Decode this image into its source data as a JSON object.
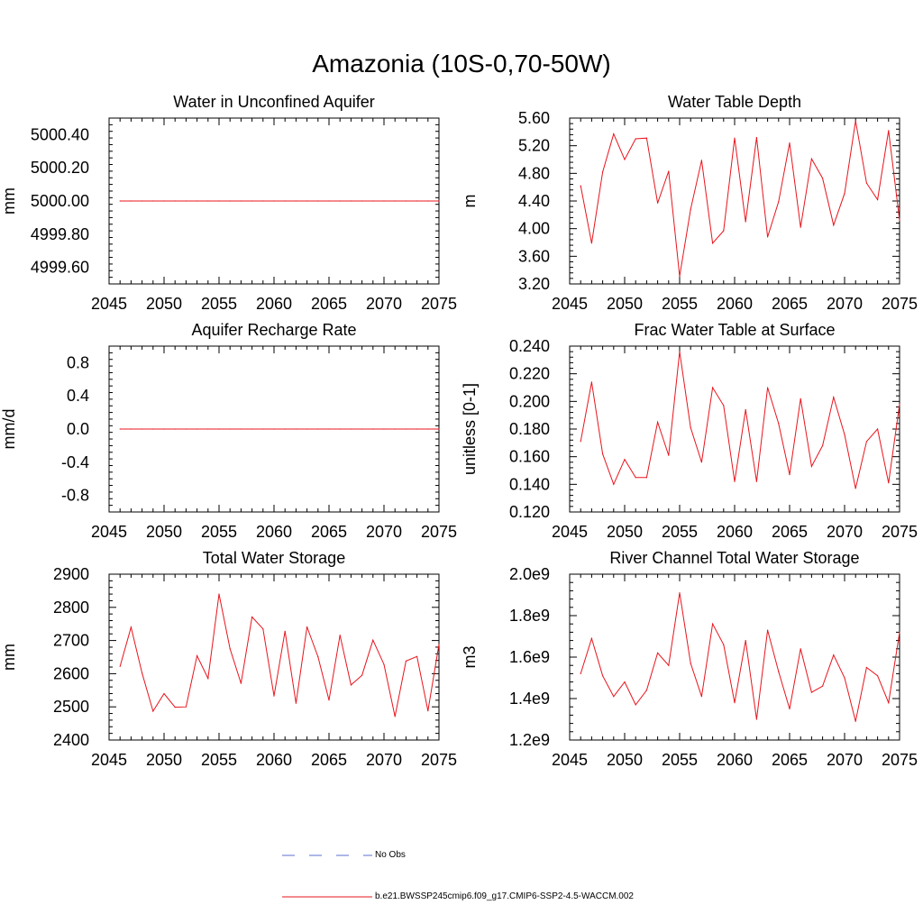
{
  "title": "Amazonia (10S-0,70-50W)",
  "legend": {
    "obs_label": "No Obs",
    "obs_color": "#5b6fd6",
    "model_label": "b.e21.BWSSP245cmip6.f09_g17.CMIP6-SSP2-4.5-WACCM.002",
    "model_color": "#e8141c"
  },
  "chart_data": [
    {
      "type": "line",
      "title": "Water in Unconfined Aquifer",
      "ylabel": "mm",
      "xlim": [
        2045,
        2075
      ],
      "ylim": [
        4999.5,
        5000.5
      ],
      "xticks": [
        "2045",
        "2050",
        "2055",
        "2060",
        "2065",
        "2070",
        "2075"
      ],
      "yticks": [
        {
          "value": 4999.6,
          "label": "4999.60"
        },
        {
          "value": 4999.8,
          "label": "4999.80"
        },
        {
          "value": 5000.0,
          "label": "5000.00"
        },
        {
          "value": 5000.2,
          "label": "5000.20"
        },
        {
          "value": 5000.4,
          "label": "5000.40"
        }
      ],
      "x": [
        2046,
        2047,
        2048,
        2049,
        2050,
        2051,
        2052,
        2053,
        2054,
        2055,
        2056,
        2057,
        2058,
        2059,
        2060,
        2061,
        2062,
        2063,
        2064,
        2065,
        2066,
        2067,
        2068,
        2069,
        2070,
        2071,
        2072,
        2073,
        2074,
        2075
      ],
      "series": [
        {
          "color": "#e8141c",
          "values": [
            5000,
            5000,
            5000,
            5000,
            5000,
            5000,
            5000,
            5000,
            5000,
            5000,
            5000,
            5000,
            5000,
            5000,
            5000,
            5000,
            5000,
            5000,
            5000,
            5000,
            5000,
            5000,
            5000,
            5000,
            5000,
            5000,
            5000,
            5000,
            5000,
            5000
          ]
        }
      ]
    },
    {
      "type": "line",
      "title": "Water Table Depth",
      "ylabel": "m",
      "xlim": [
        2045,
        2075
      ],
      "ylim": [
        3.2,
        5.6
      ],
      "xticks": [
        "2045",
        "2050",
        "2055",
        "2060",
        "2065",
        "2070",
        "2075"
      ],
      "yticks": [
        {
          "value": 3.2,
          "label": "3.20"
        },
        {
          "value": 3.6,
          "label": "3.60"
        },
        {
          "value": 4.0,
          "label": "4.00"
        },
        {
          "value": 4.4,
          "label": "4.40"
        },
        {
          "value": 4.8,
          "label": "4.80"
        },
        {
          "value": 5.2,
          "label": "5.20"
        },
        {
          "value": 5.6,
          "label": "5.60"
        }
      ],
      "x": [
        2046,
        2047,
        2048,
        2049,
        2050,
        2051,
        2052,
        2053,
        2054,
        2055,
        2056,
        2057,
        2058,
        2059,
        2060,
        2061,
        2062,
        2063,
        2064,
        2065,
        2066,
        2067,
        2068,
        2069,
        2070,
        2071,
        2072,
        2073,
        2074,
        2075
      ],
      "series": [
        {
          "color": "#e8141c",
          "values": [
            4.62,
            3.79,
            4.82,
            5.37,
            5.0,
            5.3,
            5.31,
            4.37,
            4.83,
            3.31,
            4.28,
            4.99,
            3.79,
            3.97,
            5.31,
            4.1,
            5.32,
            3.88,
            4.39,
            5.24,
            4.02,
            5.01,
            4.73,
            4.05,
            4.51,
            5.56,
            4.66,
            4.42,
            5.42,
            4.12
          ]
        }
      ]
    },
    {
      "type": "line",
      "title": "Aquifer Recharge Rate",
      "ylabel": "mm/d",
      "xlim": [
        2045,
        2075
      ],
      "ylim": [
        -1.0,
        1.0
      ],
      "xticks": [
        "2045",
        "2050",
        "2055",
        "2060",
        "2065",
        "2070",
        "2075"
      ],
      "yticks": [
        {
          "value": -0.8,
          "label": "-0.8"
        },
        {
          "value": -0.4,
          "label": "-0.4"
        },
        {
          "value": 0.0,
          "label": "0.0"
        },
        {
          "value": 0.4,
          "label": "0.4"
        },
        {
          "value": 0.8,
          "label": "0.8"
        }
      ],
      "x": [
        2046,
        2047,
        2048,
        2049,
        2050,
        2051,
        2052,
        2053,
        2054,
        2055,
        2056,
        2057,
        2058,
        2059,
        2060,
        2061,
        2062,
        2063,
        2064,
        2065,
        2066,
        2067,
        2068,
        2069,
        2070,
        2071,
        2072,
        2073,
        2074,
        2075
      ],
      "series": [
        {
          "color": "#e8141c",
          "values": [
            0,
            0,
            0,
            0,
            0,
            0,
            0,
            0,
            0,
            0,
            0,
            0,
            0,
            0,
            0,
            0,
            0,
            0,
            0,
            0,
            0,
            0,
            0,
            0,
            0,
            0,
            0,
            0,
            0,
            0
          ]
        }
      ]
    },
    {
      "type": "line",
      "title": "Frac Water Table at Surface",
      "ylabel": "unitless [0-1]",
      "xlim": [
        2045,
        2075
      ],
      "ylim": [
        0.12,
        0.24
      ],
      "xticks": [
        "2045",
        "2050",
        "2055",
        "2060",
        "2065",
        "2070",
        "2075"
      ],
      "yticks": [
        {
          "value": 0.12,
          "label": "0.120"
        },
        {
          "value": 0.14,
          "label": "0.140"
        },
        {
          "value": 0.16,
          "label": "0.160"
        },
        {
          "value": 0.18,
          "label": "0.180"
        },
        {
          "value": 0.2,
          "label": "0.200"
        },
        {
          "value": 0.22,
          "label": "0.220"
        },
        {
          "value": 0.24,
          "label": "0.240"
        }
      ],
      "x": [
        2046,
        2047,
        2048,
        2049,
        2050,
        2051,
        2052,
        2053,
        2054,
        2055,
        2056,
        2057,
        2058,
        2059,
        2060,
        2061,
        2062,
        2063,
        2064,
        2065,
        2066,
        2067,
        2068,
        2069,
        2070,
        2071,
        2072,
        2073,
        2074,
        2075
      ],
      "series": [
        {
          "color": "#e8141c",
          "values": [
            0.171,
            0.214,
            0.162,
            0.14,
            0.158,
            0.145,
            0.145,
            0.185,
            0.161,
            0.236,
            0.181,
            0.156,
            0.21,
            0.197,
            0.142,
            0.194,
            0.142,
            0.21,
            0.184,
            0.147,
            0.202,
            0.153,
            0.168,
            0.203,
            0.176,
            0.137,
            0.171,
            0.18,
            0.141,
            0.198
          ]
        }
      ]
    },
    {
      "type": "line",
      "title": "Total Water Storage",
      "ylabel": "mm",
      "xlim": [
        2045,
        2075
      ],
      "ylim": [
        2400,
        2900
      ],
      "xticks": [
        "2045",
        "2050",
        "2055",
        "2060",
        "2065",
        "2070",
        "2075"
      ],
      "yticks": [
        {
          "value": 2400,
          "label": "2400"
        },
        {
          "value": 2500,
          "label": "2500"
        },
        {
          "value": 2600,
          "label": "2600"
        },
        {
          "value": 2700,
          "label": "2700"
        },
        {
          "value": 2800,
          "label": "2800"
        },
        {
          "value": 2900,
          "label": "2900"
        }
      ],
      "x": [
        2046,
        2047,
        2048,
        2049,
        2050,
        2051,
        2052,
        2053,
        2054,
        2055,
        2056,
        2057,
        2058,
        2059,
        2060,
        2061,
        2062,
        2063,
        2064,
        2065,
        2066,
        2067,
        2068,
        2069,
        2070,
        2071,
        2072,
        2073,
        2074,
        2075
      ],
      "series": [
        {
          "color": "#e8141c",
          "values": [
            2622,
            2740,
            2602,
            2487,
            2540,
            2499,
            2500,
            2654,
            2586,
            2840,
            2675,
            2571,
            2771,
            2735,
            2533,
            2728,
            2511,
            2741,
            2651,
            2520,
            2716,
            2566,
            2595,
            2701,
            2628,
            2471,
            2638,
            2652,
            2488,
            2688
          ]
        }
      ]
    },
    {
      "type": "line",
      "title": "River Channel Total Water Storage",
      "ylabel": "m3",
      "xlim": [
        2045,
        2075
      ],
      "ylim": [
        1200000000.0,
        2000000000.0
      ],
      "xticks": [
        "2045",
        "2050",
        "2055",
        "2060",
        "2065",
        "2070",
        "2075"
      ],
      "yticks": [
        {
          "value": 1200000000.0,
          "label": "1.2e9"
        },
        {
          "value": 1400000000.0,
          "label": "1.4e9"
        },
        {
          "value": 1600000000.0,
          "label": "1.6e9"
        },
        {
          "value": 1800000000.0,
          "label": "1.8e9"
        },
        {
          "value": 2000000000.0,
          "label": "2.0e9"
        }
      ],
      "x": [
        2046,
        2047,
        2048,
        2049,
        2050,
        2051,
        2052,
        2053,
        2054,
        2055,
        2056,
        2057,
        2058,
        2059,
        2060,
        2061,
        2062,
        2063,
        2064,
        2065,
        2066,
        2067,
        2068,
        2069,
        2070,
        2071,
        2072,
        2073,
        2074,
        2075
      ],
      "series": [
        {
          "color": "#e8141c",
          "values": [
            1520000000.0,
            1690000000.0,
            1510000000.0,
            1410000000.0,
            1480000000.0,
            1370000000.0,
            1440000000.0,
            1620000000.0,
            1560000000.0,
            1910000000.0,
            1570000000.0,
            1410000000.0,
            1760000000.0,
            1660000000.0,
            1380000000.0,
            1680000000.0,
            1300000000.0,
            1730000000.0,
            1530000000.0,
            1350000000.0,
            1640000000.0,
            1430000000.0,
            1460000000.0,
            1610000000.0,
            1500000000.0,
            1290000000.0,
            1550000000.0,
            1510000000.0,
            1380000000.0,
            1720000000.0
          ]
        }
      ]
    }
  ]
}
